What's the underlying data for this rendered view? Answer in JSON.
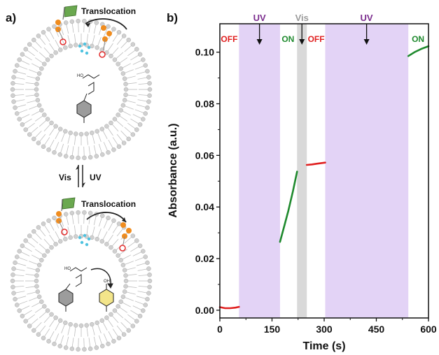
{
  "panel_a": {
    "label": "a)",
    "top_translocation": "Translocation",
    "bottom_translocation": "Translocation",
    "vis_label": "Vis",
    "uv_label": "UV",
    "colors": {
      "headgroup": "#c9c9c9",
      "arm": "#f08c1e",
      "flag": "#6aa84f",
      "ring_red": "#e32b2b",
      "dots": "#4fc3e0",
      "product_ring": "#f3e58a"
    }
  },
  "chart_data": {
    "type": "line",
    "panel_label": "b)",
    "xlabel": "Time (s)",
    "ylabel": "Absorbance (a.u.)",
    "xlim": [
      0,
      600
    ],
    "ylim": [
      -0.003,
      0.111
    ],
    "xticks": [
      0,
      150,
      300,
      450,
      600
    ],
    "xtick_labels": [
      "0",
      "150",
      "300",
      "450",
      "600"
    ],
    "yticks": [
      0.0,
      0.02,
      0.04,
      0.06,
      0.08,
      0.1
    ],
    "ytick_labels": [
      "0.00",
      "0.02",
      "0.04",
      "0.06",
      "0.08",
      "0.10"
    ],
    "grid": false,
    "shaded_regions": [
      {
        "x0": 55,
        "x1": 173,
        "color": "#e3d3f6"
      },
      {
        "x0": 222,
        "x1": 250,
        "color": "#d9d9d9"
      },
      {
        "x0": 303,
        "x1": 542,
        "color": "#e3d3f6"
      }
    ],
    "light_labels": [
      {
        "text": "UV",
        "x": 114,
        "color": "#7b2d8e"
      },
      {
        "text": "Vis",
        "x": 236,
        "color": "#9a9a9a"
      },
      {
        "text": "UV",
        "x": 422,
        "color": "#7b2d8e"
      }
    ],
    "state_labels": [
      {
        "text": "OFF",
        "x": 27,
        "color": "#e02020"
      },
      {
        "text": "ON",
        "x": 196,
        "color": "#1f8a2e"
      },
      {
        "text": "OFF",
        "x": 277,
        "color": "#e02020"
      },
      {
        "text": "ON",
        "x": 570,
        "color": "#1f8a2e"
      }
    ],
    "series": [
      {
        "color": "#e02020",
        "points": [
          [
            0,
            0.0012
          ],
          [
            15,
            0.0008
          ],
          [
            30,
            0.0008
          ],
          [
            45,
            0.001
          ],
          [
            55,
            0.0013
          ]
        ]
      },
      {
        "color": "#1f8a2e",
        "points": [
          [
            173,
            0.0265
          ],
          [
            185,
            0.0325
          ],
          [
            197,
            0.0385
          ],
          [
            210,
            0.046
          ],
          [
            222,
            0.0537
          ]
        ]
      },
      {
        "color": "#e02020",
        "points": [
          [
            250,
            0.0563
          ],
          [
            265,
            0.0565
          ],
          [
            280,
            0.0568
          ],
          [
            303,
            0.0572
          ]
        ]
      },
      {
        "color": "#1f8a2e",
        "points": [
          [
            542,
            0.0985
          ],
          [
            560,
            0.1
          ],
          [
            580,
            0.1013
          ],
          [
            600,
            0.1023
          ]
        ]
      }
    ]
  }
}
